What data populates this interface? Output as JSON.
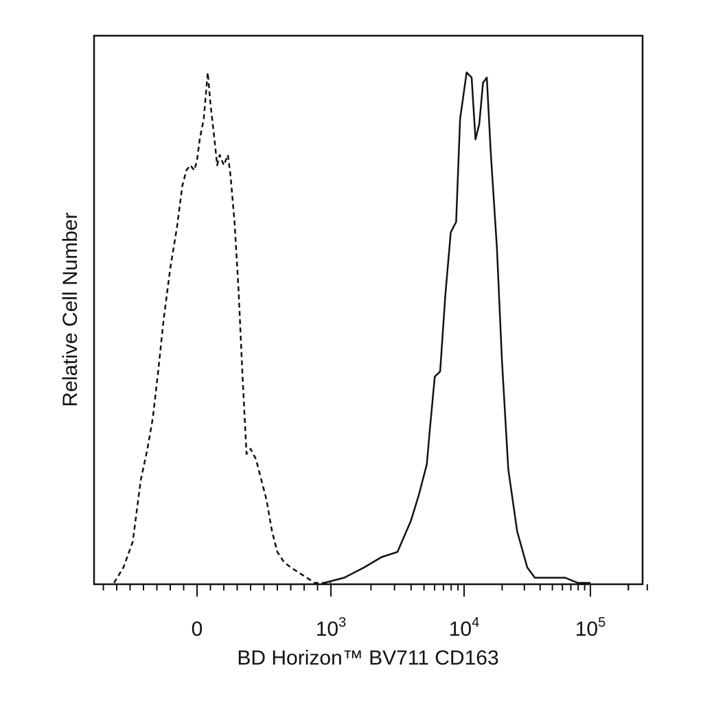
{
  "chart_data": {
    "type": "line",
    "title": "",
    "xlabel": "BD Horizon™ BV711 CD163",
    "ylabel": "Relative Cell Number",
    "x_scale": "biexponential",
    "x_tick_labels": [
      {
        "base": "0",
        "exp": ""
      },
      {
        "base": "10",
        "exp": "3"
      },
      {
        "base": "10",
        "exp": "4"
      },
      {
        "base": "10",
        "exp": "5"
      }
    ],
    "grid": false,
    "legend": "none",
    "series": [
      {
        "style": "dashed",
        "color": "#111111",
        "x": [
          -0.62,
          -0.55,
          -0.48,
          -0.42,
          -0.37,
          -0.33,
          -0.29,
          -0.25,
          -0.2,
          -0.15,
          -0.11,
          -0.08,
          -0.05,
          -0.02,
          0.0,
          0.02,
          0.05,
          0.08,
          0.1,
          0.13,
          0.15,
          0.17,
          0.2,
          0.23,
          0.25,
          0.28,
          0.31,
          0.34,
          0.37,
          0.4,
          0.44,
          0.48,
          0.52,
          0.56,
          0.6,
          0.65,
          0.7,
          0.76,
          0.82,
          0.88,
          0.95,
          1.0
        ],
        "y": [
          0.0,
          0.03,
          0.08,
          0.2,
          0.26,
          0.32,
          0.41,
          0.51,
          0.61,
          0.69,
          0.77,
          0.8,
          0.81,
          0.8,
          0.82,
          0.86,
          0.9,
          0.99,
          0.93,
          0.86,
          0.81,
          0.83,
          0.81,
          0.83,
          0.79,
          0.7,
          0.57,
          0.4,
          0.25,
          0.26,
          0.24,
          0.2,
          0.16,
          0.1,
          0.06,
          0.04,
          0.03,
          0.02,
          0.01,
          0.0,
          0.0,
          0.0
        ]
      },
      {
        "style": "solid",
        "color": "#111111",
        "x": [
          0.95,
          1.1,
          1.25,
          1.38,
          1.5,
          1.6,
          1.66,
          1.7,
          1.72,
          1.74,
          1.78,
          1.82,
          1.86,
          1.9,
          1.94,
          1.97,
          2.02,
          2.06,
          2.09,
          2.12,
          2.15,
          2.18,
          2.21,
          2.26,
          2.3,
          2.35,
          2.42,
          2.5,
          2.56,
          2.62,
          2.7,
          2.8,
          2.9,
          3.0
        ],
        "y": [
          0.0,
          0.01,
          0.03,
          0.05,
          0.06,
          0.12,
          0.17,
          0.21,
          0.23,
          0.29,
          0.4,
          0.41,
          0.56,
          0.68,
          0.7,
          0.9,
          0.99,
          0.98,
          0.86,
          0.89,
          0.97,
          0.98,
          0.84,
          0.65,
          0.43,
          0.22,
          0.1,
          0.03,
          0.01,
          0.01,
          0.01,
          0.01,
          0.0,
          0.0
        ]
      }
    ]
  }
}
